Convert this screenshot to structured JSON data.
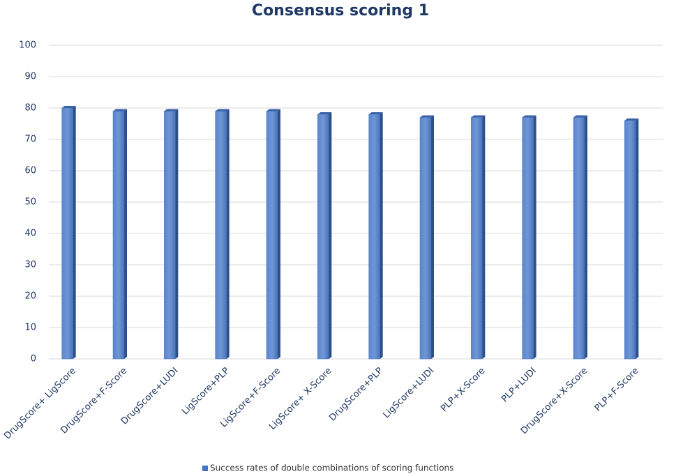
{
  "chart_data": {
    "type": "bar",
    "title": "Consensus scoring 1",
    "categories": [
      "DrugScore+ LigScore",
      "DrugScore+F-Score",
      "DrugScore+LUDI",
      "LigScore+PLP",
      "LigScore+F-Score",
      "LigScore+ X-Score",
      "DrugScore+PLP",
      "LigScore+LUDI",
      "PLP+X-Score",
      "PLP+LUDI",
      "DrugScore+X-Score",
      "PLP+F-Score"
    ],
    "series": [
      {
        "name": "Success rates of double combinations of scoring functions",
        "color": "#4472c4",
        "values": [
          80,
          79,
          79,
          79,
          79,
          78,
          78,
          77,
          77,
          77,
          77,
          76
        ]
      }
    ],
    "ylim": [
      0,
      100
    ],
    "yticks": [
      0,
      10,
      20,
      30,
      40,
      50,
      60,
      70,
      80,
      90,
      100
    ],
    "grid": true,
    "legend": "bottom"
  }
}
